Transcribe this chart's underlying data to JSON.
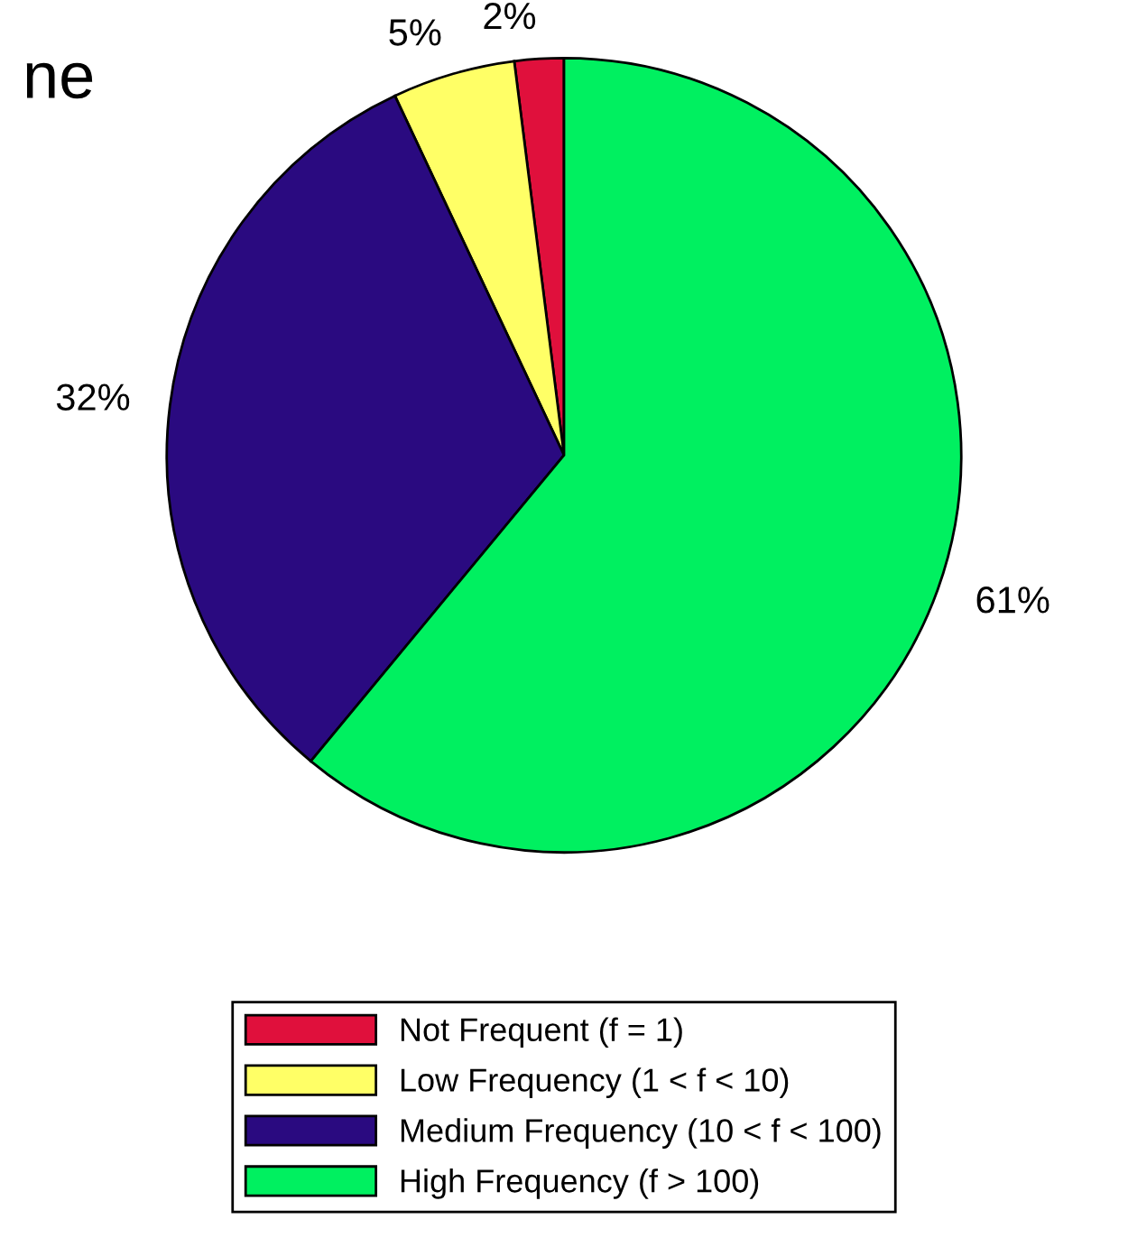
{
  "chart_data": {
    "type": "pie",
    "categories": [
      "Not Frequent (f = 1)",
      "Low Frequency (1 < f < 10)",
      "Medium Frequency (10 < f < 100)",
      "High Frequency (f > 100)"
    ],
    "values": [
      2,
      5,
      32,
      61
    ],
    "colors": [
      "#e0103c",
      "#ffff66",
      "#2a0a80",
      "#00f060"
    ],
    "value_labels": [
      "2%",
      "5%",
      "32%",
      "61%"
    ],
    "legend": "bottom",
    "annotations": [
      "ne"
    ]
  }
}
